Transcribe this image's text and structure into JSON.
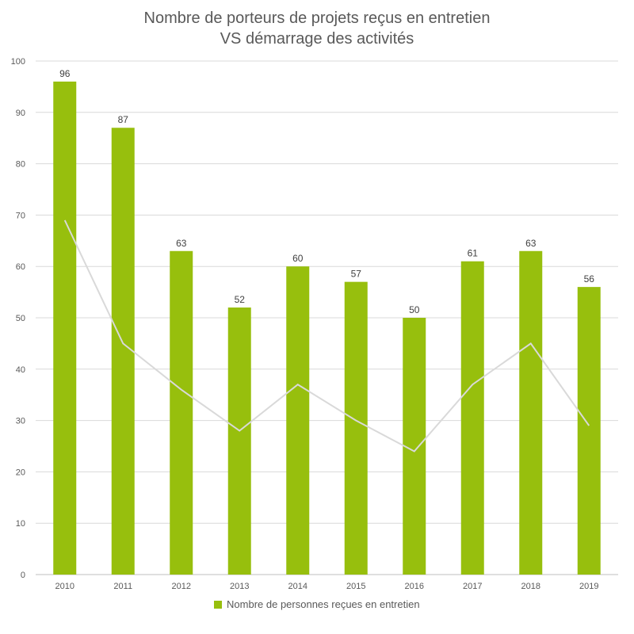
{
  "chart_data": {
    "type": "bar",
    "title_line1": "Nombre de porteurs de projets reçus en entretien",
    "title_line2": "VS démarrage des activités",
    "categories": [
      "2010",
      "2011",
      "2012",
      "2013",
      "2014",
      "2015",
      "2016",
      "2017",
      "2018",
      "2019"
    ],
    "series": [
      {
        "name": "Nombre de personnes reçues en entretien",
        "type": "bar",
        "values": [
          96,
          87,
          63,
          52,
          60,
          57,
          50,
          61,
          63,
          56
        ]
      },
      {
        "type": "line",
        "values": [
          69,
          45,
          36,
          28,
          37,
          30,
          24,
          37,
          45,
          29
        ]
      }
    ],
    "ylim": [
      0,
      100
    ],
    "yticks": [
      0,
      10,
      20,
      30,
      40,
      50,
      60,
      70,
      80,
      90,
      100
    ],
    "grid": true,
    "legend_position": "bottom",
    "colors": {
      "bar": "#97bf0d",
      "line": "#d9d9d9",
      "grid": "#d9d9d9",
      "axis": "#bfbfbf"
    }
  }
}
